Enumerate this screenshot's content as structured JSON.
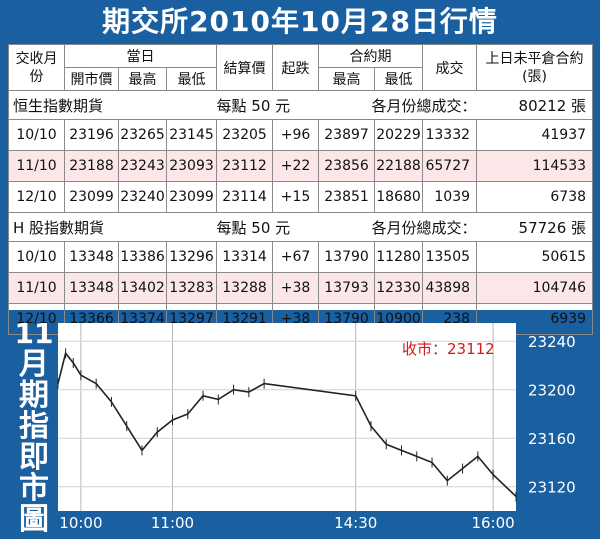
{
  "title": "期交所2010年10月28日行情",
  "table": {
    "headers": {
      "month": "交收月份",
      "day": "當日",
      "open": "開市價",
      "high": "最高",
      "low": "最低",
      "settle": "結算價",
      "change": "起跌",
      "contract": "合約期",
      "c_high": "最高",
      "c_low": "最低",
      "volume": "成交",
      "oi": "上日未平倉合約(張)"
    },
    "sections": [
      {
        "name": "恒生指數期貨",
        "point": "每點 50 元",
        "total_label": "各月份總成交：",
        "total": "80212 張",
        "rows": [
          [
            "10/10",
            "23196",
            "23265",
            "23145",
            "23205",
            "+96",
            "23897",
            "20229",
            "13332",
            "41937"
          ],
          [
            "11/10",
            "23188",
            "23243",
            "23093",
            "23112",
            "+22",
            "23856",
            "22188",
            "65727",
            "114533"
          ],
          [
            "12/10",
            "23099",
            "23240",
            "23099",
            "23114",
            "+15",
            "23851",
            "18680",
            "1039",
            "6738"
          ]
        ]
      },
      {
        "name": "H 股指數期貨",
        "point": "每點 50 元",
        "total_label": "各月份總成交：",
        "total": "57726 張",
        "rows": [
          [
            "10/10",
            "13348",
            "13386",
            "13296",
            "13314",
            "+67",
            "13790",
            "11280",
            "13505",
            "50615"
          ],
          [
            "11/10",
            "13348",
            "13402",
            "13283",
            "13288",
            "+38",
            "13793",
            "12330",
            "43898",
            "104746"
          ],
          [
            "12/10",
            "13366",
            "13374",
            "13297",
            "13291",
            "+38",
            "13790",
            "10900",
            "238",
            "6939"
          ]
        ]
      }
    ]
  },
  "chart_title_vertical": [
    "11",
    "月",
    "期",
    "指",
    "即",
    "市",
    "圖"
  ],
  "chart_data": {
    "type": "line",
    "close_label": "收市：23112",
    "x_ticks": [
      "10:00",
      "11:00",
      "14:30",
      "16:00"
    ],
    "y_ticks": [
      23240,
      23200,
      23160,
      23120
    ],
    "ylim": [
      23100,
      23255
    ],
    "x": [
      "09:45",
      "09:50",
      "09:55",
      "10:00",
      "10:10",
      "10:20",
      "10:30",
      "10:40",
      "10:50",
      "11:00",
      "11:10",
      "11:20",
      "11:30",
      "11:40",
      "11:50",
      "12:00",
      "14:30",
      "14:40",
      "14:50",
      "15:00",
      "15:10",
      "15:20",
      "15:30",
      "15:40",
      "15:50",
      "16:00",
      "16:15"
    ],
    "values": [
      23205,
      23230,
      23222,
      23212,
      23205,
      23190,
      23170,
      23150,
      23165,
      23175,
      23180,
      23195,
      23192,
      23200,
      23198,
      23205,
      23195,
      23170,
      23155,
      23150,
      23145,
      23140,
      23125,
      23135,
      23145,
      23130,
      23112
    ]
  },
  "colors": {
    "frame": "#1a5fa0",
    "alt_row": "#fbe7e8",
    "close_text": "#d31a1a"
  }
}
